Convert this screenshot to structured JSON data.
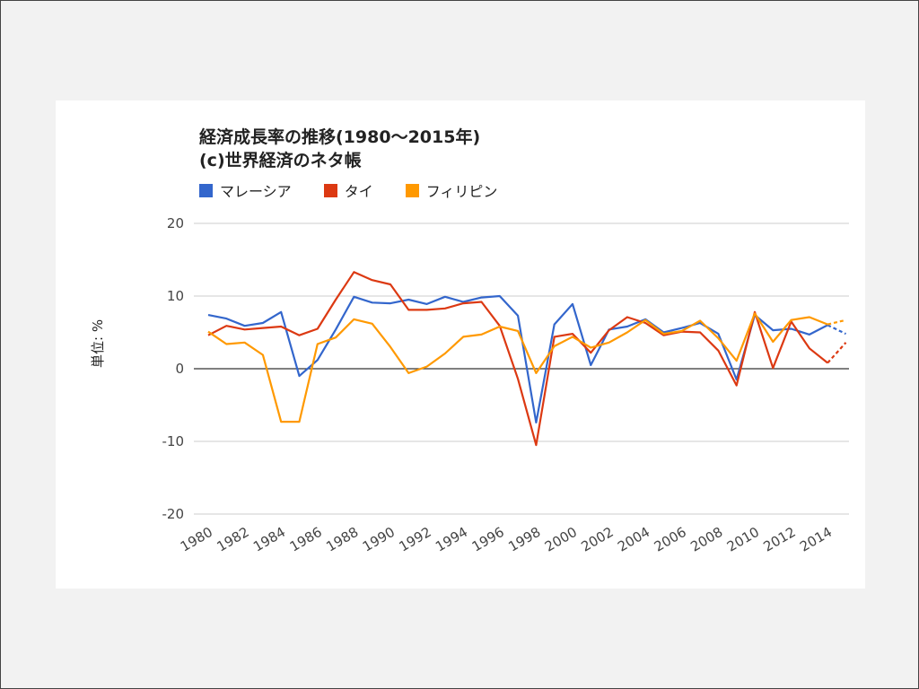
{
  "chart_data": {
    "type": "line",
    "title": "経済成長率の推移(1980～2015年)",
    "subtitle": "(c)世界経済のネタ帳",
    "ylabel": "単位: %",
    "ylim": [
      -20,
      20
    ],
    "yticks": [
      20,
      10,
      0,
      -10,
      -20
    ],
    "ytick_labels": [
      "20",
      "10",
      "0",
      "-10",
      "-20"
    ],
    "x": [
      1980,
      1981,
      1982,
      1983,
      1984,
      1985,
      1986,
      1987,
      1988,
      1989,
      1990,
      1991,
      1992,
      1993,
      1994,
      1995,
      1996,
      1997,
      1998,
      1999,
      2000,
      2001,
      2002,
      2003,
      2004,
      2005,
      2006,
      2007,
      2008,
      2009,
      2010,
      2011,
      2012,
      2013,
      2014,
      2015
    ],
    "xtick_labels": [
      "1980",
      "1982",
      "1984",
      "1986",
      "1988",
      "1990",
      "1992",
      "1994",
      "1996",
      "1998",
      "2000",
      "2002",
      "2004",
      "2006",
      "2008",
      "2010",
      "2012",
      "2014"
    ],
    "grid": true,
    "legend_position": "top",
    "dashed_last_segment": true,
    "series": [
      {
        "name": "マレーシア",
        "color": "#3366cc",
        "values": [
          7.4,
          6.9,
          5.9,
          6.3,
          7.8,
          -1.0,
          1.2,
          5.4,
          9.9,
          9.1,
          9.0,
          9.5,
          8.9,
          9.9,
          9.2,
          9.8,
          10.0,
          7.3,
          -7.4,
          6.1,
          8.9,
          0.5,
          5.4,
          5.8,
          6.8,
          5.0,
          5.6,
          6.3,
          4.8,
          -1.5,
          7.4,
          5.3,
          5.5,
          4.7,
          6.0,
          4.8
        ]
      },
      {
        "name": "タイ",
        "color": "#dc3912",
        "values": [
          4.6,
          5.9,
          5.4,
          5.6,
          5.8,
          4.6,
          5.5,
          9.5,
          13.3,
          12.2,
          11.6,
          8.1,
          8.1,
          8.3,
          9.0,
          9.2,
          5.9,
          -1.4,
          -10.5,
          4.4,
          4.8,
          2.2,
          5.3,
          7.1,
          6.3,
          4.6,
          5.1,
          5.0,
          2.5,
          -2.3,
          7.8,
          0.1,
          6.5,
          2.8,
          0.8,
          3.6
        ]
      },
      {
        "name": "フィリピン",
        "color": "#ff9900",
        "values": [
          5.1,
          3.4,
          3.6,
          1.9,
          -7.3,
          -7.3,
          3.4,
          4.3,
          6.8,
          6.2,
          3.0,
          -0.6,
          0.3,
          2.1,
          4.4,
          4.7,
          5.8,
          5.2,
          -0.6,
          3.1,
          4.4,
          2.9,
          3.6,
          5.0,
          6.7,
          4.8,
          5.2,
          6.6,
          4.2,
          1.1,
          7.6,
          3.7,
          6.7,
          7.1,
          6.1,
          6.7
        ]
      }
    ]
  }
}
